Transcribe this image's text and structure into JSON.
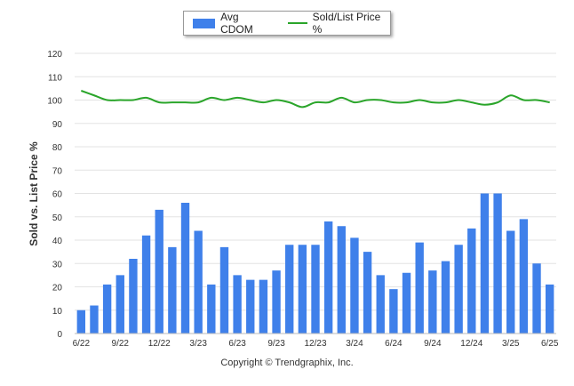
{
  "chart_data": {
    "type": "bar",
    "ylabel": "Sold vs. List Price %",
    "ylim": [
      0,
      120
    ],
    "yticks": [
      0,
      10,
      20,
      30,
      40,
      50,
      60,
      70,
      80,
      90,
      100,
      110,
      120
    ],
    "grid": true,
    "legend_position": "top-center",
    "categories": [
      "6/22",
      "7/22",
      "8/22",
      "9/22",
      "10/22",
      "11/22",
      "12/22",
      "1/23",
      "2/23",
      "3/23",
      "4/23",
      "5/23",
      "6/23",
      "7/23",
      "8/23",
      "9/23",
      "10/23",
      "11/23",
      "12/23",
      "1/24",
      "2/24",
      "3/24",
      "4/24",
      "5/24",
      "6/24",
      "7/24",
      "8/24",
      "9/24",
      "10/24",
      "11/24",
      "12/24",
      "1/25",
      "2/25",
      "3/25",
      "4/25",
      "5/25",
      "6/25"
    ],
    "tick_labels": [
      "6/22",
      "9/22",
      "12/22",
      "3/23",
      "6/23",
      "9/23",
      "12/23",
      "3/24",
      "6/24",
      "9/24",
      "12/24",
      "3/25",
      "6/25"
    ],
    "series": [
      {
        "name": "Avg CDOM",
        "kind": "bar",
        "color": "#3f80ea",
        "values": [
          10,
          12,
          21,
          25,
          32,
          42,
          53,
          37,
          56,
          44,
          21,
          37,
          25,
          23,
          23,
          27,
          38,
          38,
          38,
          48,
          46,
          41,
          35,
          25,
          19,
          26,
          39,
          27,
          31,
          38,
          45,
          60,
          60,
          44,
          49,
          30,
          21
        ]
      },
      {
        "name": "Sold/List Price %",
        "kind": "line",
        "color": "#2aa52a",
        "values": [
          104,
          102,
          100,
          100,
          100,
          101,
          99,
          99,
          99,
          99,
          101,
          100,
          101,
          100,
          99,
          100,
          99,
          97,
          99,
          99,
          101,
          99,
          100,
          100,
          99,
          99,
          100,
          99,
          99,
          100,
          99,
          98,
          99,
          102,
          100,
          100,
          99
        ]
      }
    ]
  },
  "caption": "Copyright © Trendgraphix, Inc."
}
